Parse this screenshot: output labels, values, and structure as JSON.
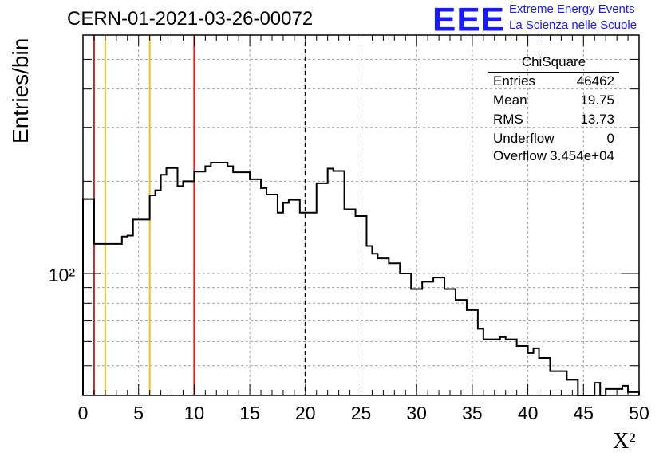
{
  "title": "CERN-01-2021-03-26-00072",
  "logo": {
    "mark": "EEE",
    "line1": "Extreme Energy Events",
    "line2": "La Scienza nelle Scuole"
  },
  "colors": {
    "background": "#ffffff",
    "histogram": "#000000",
    "grid": "#a0a0a0",
    "red_line": "#e02020",
    "yellow_line": "#f0c020",
    "logo_blue": "#1a1aff"
  },
  "stats": {
    "name": "ChiSquare",
    "rows": [
      {
        "key": "Entries",
        "value": "46462"
      },
      {
        "key": "Mean",
        "value": "19.75"
      },
      {
        "key": "RMS",
        "value": "13.73"
      },
      {
        "key": "Underflow",
        "value": "0"
      },
      {
        "key": "Overflow",
        "value": "3.454e+04"
      }
    ]
  },
  "chart_data": {
    "type": "histogram",
    "title": "CERN-01-2021-03-26-00072",
    "xlabel": "X²",
    "ylabel": "Entries/bin",
    "xlim": [
      0,
      50
    ],
    "ylim": [
      40,
      600
    ],
    "y_scale": "log",
    "grid": true,
    "x_ticks": [
      "0",
      "5",
      "10",
      "15",
      "20",
      "25",
      "30",
      "35",
      "40",
      "45",
      "50"
    ],
    "y_tick_label": "10²",
    "bin_width": 0.5,
    "bin_start": 0,
    "counts": [
      175,
      175,
      125,
      125,
      125,
      125,
      125,
      132,
      133,
      150,
      150,
      150,
      180,
      187,
      210,
      221,
      221,
      193,
      200,
      200,
      215,
      215,
      224,
      230,
      230,
      230,
      224,
      214,
      214,
      214,
      203,
      203,
      190,
      181,
      181,
      158,
      170,
      174,
      174,
      158,
      158,
      158,
      197,
      197,
      220,
      216,
      216,
      162,
      162,
      154,
      154,
      123,
      116,
      112,
      112,
      108,
      108,
      100,
      100,
      89,
      89,
      94,
      94,
      97,
      97,
      89,
      89,
      82,
      82,
      76,
      76,
      66,
      61,
      61,
      61,
      62,
      61,
      61,
      58,
      58,
      55,
      57,
      53,
      53,
      48,
      48,
      48,
      45,
      45,
      40,
      40,
      40,
      44,
      40,
      42,
      42,
      42,
      43,
      41,
      41
    ],
    "vertical_lines": [
      {
        "x": 1,
        "color": "red",
        "style": "solid"
      },
      {
        "x": 2,
        "color": "yellow",
        "style": "solid"
      },
      {
        "x": 6,
        "color": "yellow",
        "style": "solid"
      },
      {
        "x": 10,
        "color": "red",
        "style": "solid"
      },
      {
        "x": 20,
        "color": "black",
        "style": "dashed"
      }
    ]
  }
}
